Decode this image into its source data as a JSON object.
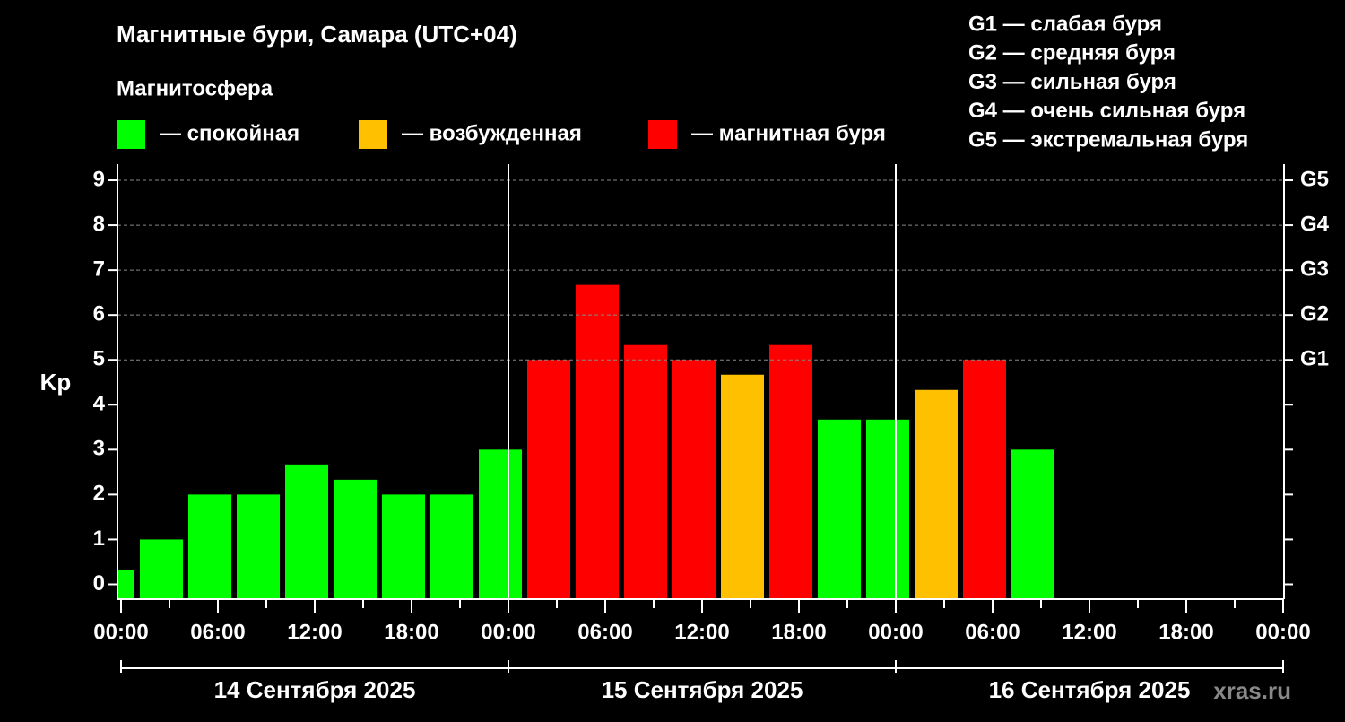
{
  "chart_data": {
    "type": "bar",
    "title": "Магнитные бури, Самара (UTC+04)",
    "subtitle": "Магнитосфера",
    "legend": [
      {
        "name": "— спокойная",
        "color": "#00ff00"
      },
      {
        "name": "— возбужденная",
        "color": "#ffc000"
      },
      {
        "name": "— магнитная буря",
        "color": "#ff0000"
      }
    ],
    "levels": [
      "G1 — слабая буря",
      "G2 — средняя буря",
      "G3 — сильная буря",
      "G4 — очень сильная буря",
      "G5 — экстремальная буря"
    ],
    "ylabel": "Kp",
    "x": [
      -0.5,
      2.5,
      5.5,
      8.5,
      11.5,
      14.5,
      17.5,
      20.5,
      23.5,
      26.5,
      29.5,
      32.5,
      35.5,
      38.5,
      41.5,
      44.5,
      47.5,
      50.5,
      53.5,
      56.5
    ],
    "values": [
      0.33,
      1,
      2,
      2,
      2.67,
      2.33,
      2,
      2,
      3,
      5,
      6.67,
      5.33,
      5,
      4.67,
      5.33,
      3.67,
      3.67,
      4.33,
      5,
      3
    ],
    "colors": [
      "#00ff00",
      "#00ff00",
      "#00ff00",
      "#00ff00",
      "#00ff00",
      "#00ff00",
      "#00ff00",
      "#00ff00",
      "#00ff00",
      "#ff0000",
      "#ff0000",
      "#ff0000",
      "#ff0000",
      "#ffc000",
      "#ff0000",
      "#00ff00",
      "#00ff00",
      "#ffc000",
      "#ff0000",
      "#00ff00"
    ],
    "xlim": [
      0,
      72
    ],
    "xticks": [
      {
        "value": 0,
        "label": "00:00"
      },
      {
        "value": 6,
        "label": "06:00"
      },
      {
        "value": 12,
        "label": "12:00"
      },
      {
        "value": 18,
        "label": "18:00"
      },
      {
        "value": 24,
        "label": "00:00"
      },
      {
        "value": 30,
        "label": "06:00"
      },
      {
        "value": 36,
        "label": "12:00"
      },
      {
        "value": 42,
        "label": "18:00"
      },
      {
        "value": 48,
        "label": "00:00"
      },
      {
        "value": 54,
        "label": "06:00"
      },
      {
        "value": 60,
        "label": "12:00"
      },
      {
        "value": 66,
        "label": "18:00"
      },
      {
        "value": 72,
        "label": "00:00"
      }
    ],
    "xticks_minor": [
      3,
      9,
      15,
      21,
      27,
      33,
      39,
      45,
      51,
      57,
      63,
      69
    ],
    "days": [
      {
        "label": "14 Сентября 2025",
        "start": 0,
        "end": 24
      },
      {
        "label": "15 Сентября 2025",
        "start": 24,
        "end": 48
      },
      {
        "label": "16 Сентября 2025",
        "start": 48,
        "end": 72
      }
    ],
    "ylim": [
      -0.33,
      9.36
    ],
    "yticks": [
      0,
      1,
      2,
      3,
      4,
      5,
      6,
      7,
      8,
      9
    ],
    "y2ticks": [
      {
        "value": 5,
        "label": "G1"
      },
      {
        "value": 6,
        "label": "G2"
      },
      {
        "value": 7,
        "label": "G3"
      },
      {
        "value": 8,
        "label": "G4"
      },
      {
        "value": 9,
        "label": "G5"
      }
    ],
    "grid": true,
    "watermark": "xras.ru"
  }
}
